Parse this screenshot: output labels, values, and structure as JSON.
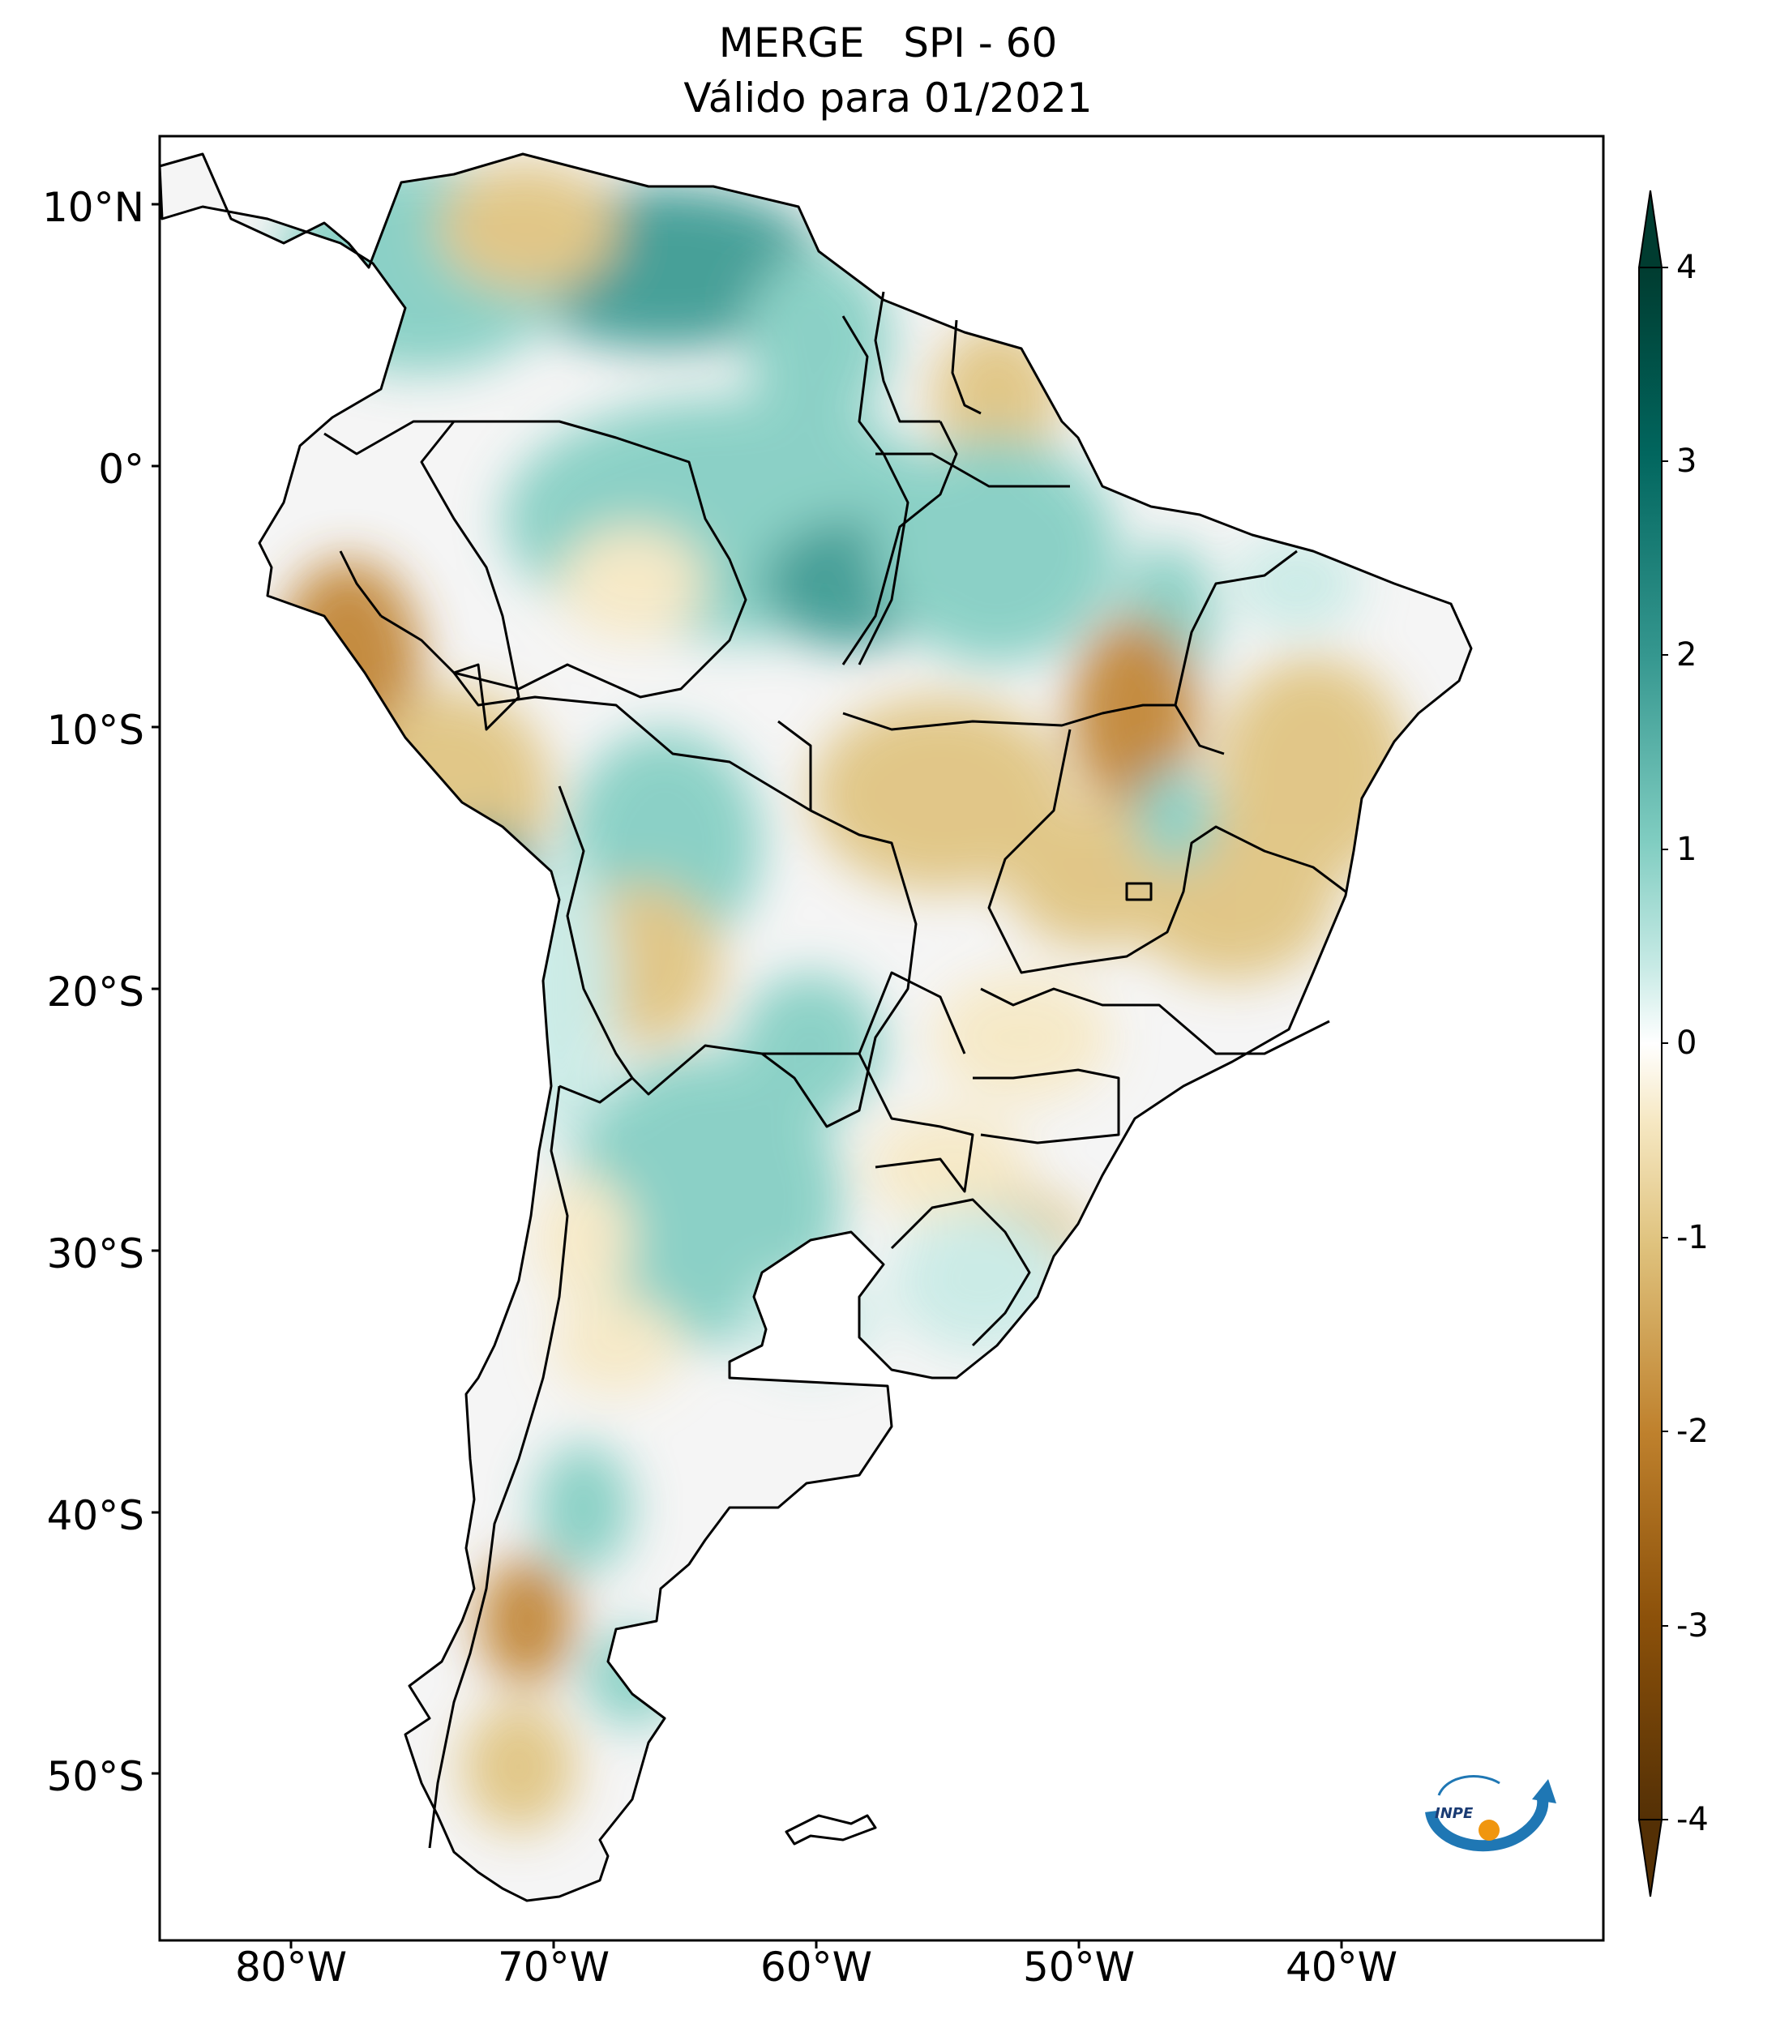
{
  "title": {
    "line1": "MERGE   SPI - 60",
    "line2": "Válido para 01/2021"
  },
  "axes": {
    "lat_ticks": [
      "10°N",
      "0°",
      "10°S",
      "20°S",
      "30°S",
      "40°S",
      "50°S"
    ],
    "lon_ticks": [
      "80°W",
      "70°W",
      "60°W",
      "50°W",
      "40°W"
    ],
    "lon_range": [
      -85,
      -30
    ],
    "lat_range": [
      -56,
      13
    ]
  },
  "colorbar": {
    "ticks": [
      "4",
      "3",
      "2",
      "1",
      "0",
      "-1",
      "-2",
      "-3",
      "-4"
    ],
    "range": [
      -4,
      4
    ],
    "colors": {
      "dry_extreme": "#543005",
      "dry": "#bf812d",
      "neutral": "#f5f5f5",
      "wet": "#80cdc1",
      "wet_extreme": "#003c30"
    }
  },
  "logo": {
    "text": "INPE",
    "icon": "inpe-logo"
  }
}
